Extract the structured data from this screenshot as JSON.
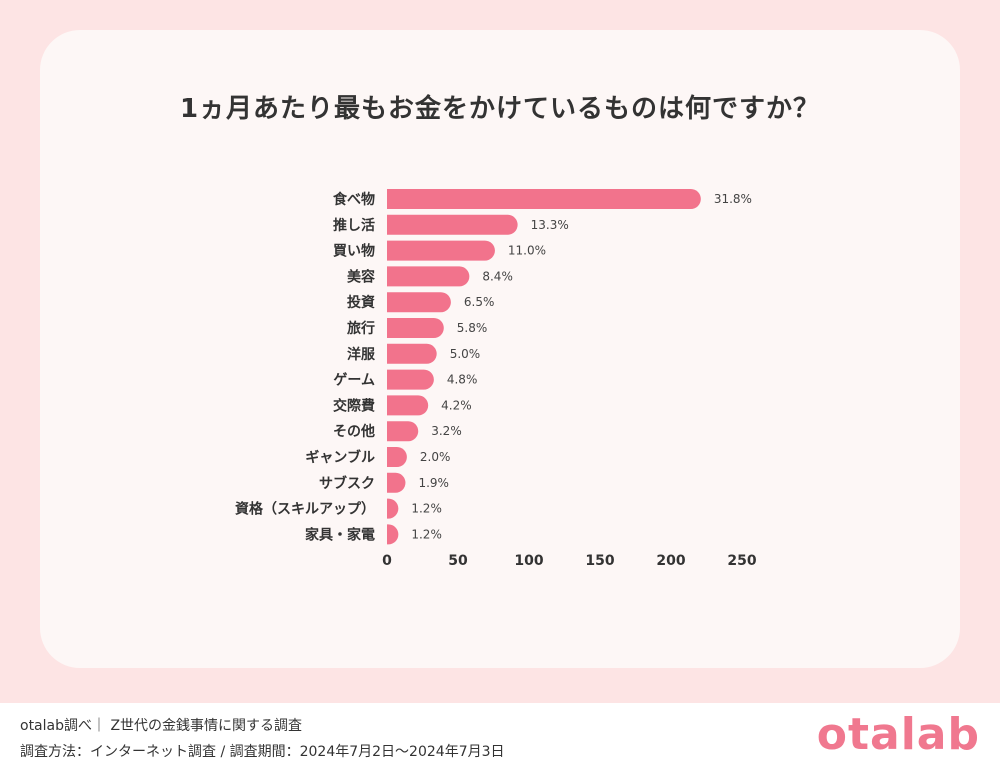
{
  "chart_data": {
    "type": "bar",
    "orientation": "horizontal",
    "title": "1ヵ月あたり最もお金をかけているものは何ですか？",
    "categories": [
      "食べ物",
      "推し活",
      "買い物",
      "美容",
      "投資",
      "旅行",
      "洋服",
      "ゲーム",
      "交際費",
      "その他",
      "ギャンブル",
      "サブスク",
      "資格（スキルアップ）",
      "家具・家電"
    ],
    "values": [
      221,
      92,
      76,
      58,
      45,
      40,
      35,
      33,
      29,
      22,
      14,
      13,
      8,
      8
    ],
    "data_labels": [
      "31.8%",
      "13.3%",
      "11.0%",
      "8.4%",
      "6.5%",
      "5.8%",
      "5.0%",
      "4.8%",
      "4.2%",
      "3.2%",
      "2.0%",
      "1.9%",
      "1.2%",
      "1.2%"
    ],
    "xlim": [
      0,
      250
    ],
    "x_ticks": [
      0,
      50,
      100,
      150,
      200,
      250
    ],
    "x_tick_labels": [
      "0",
      "50",
      "100",
      "150",
      "200",
      "250"
    ],
    "grid": false,
    "bar_color": "#f2738c",
    "background": "#fdf7f6"
  },
  "footer": {
    "line1": "otalab調べ｜ Z世代の金銭事情に関する調査",
    "line2": "調査方法：インターネット調査 / 調査期間：2024年7月2日〜2024年7月3日"
  },
  "logo": {
    "text": "otalab",
    "color": "#f0788f"
  }
}
